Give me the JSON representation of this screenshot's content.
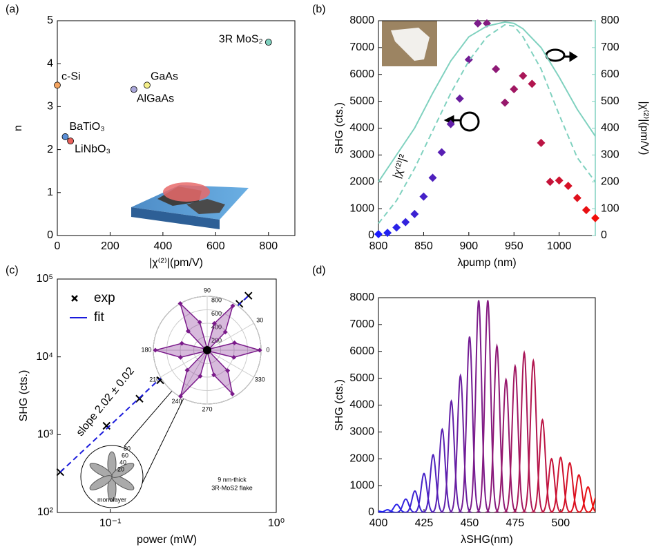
{
  "chart_data": [
    {
      "type": "scatter",
      "panel_label": "(a)",
      "xlabel": "|χ⁽²⁾|(pm/V)",
      "ylabel": "n",
      "xlim": [
        0,
        900
      ],
      "xticks": [
        0,
        200,
        400,
        600,
        800
      ],
      "ylim": [
        0,
        5
      ],
      "yticks": [
        0,
        1,
        2,
        3,
        4,
        5
      ],
      "points": {
        "labels": [
          "c-Si",
          "GaAs",
          "AlGaAs",
          "BaTiO₃",
          "LiNbO₃",
          "3R MoS₂"
        ],
        "x": [
          0,
          340,
          290,
          30,
          50,
          800
        ],
        "y": [
          3.5,
          3.5,
          3.4,
          2.3,
          2.2,
          4.5
        ],
        "colors": [
          "#f4a460",
          "#f5f08a",
          "#a9a6d9",
          "#5b8fd6",
          "#e8605a",
          "#7fd1bf"
        ]
      }
    },
    {
      "type": "scatter",
      "panel_label": "(b)",
      "xlabel": "λpump (nm)",
      "ylabel": "SHG (cts.)",
      "y2label": "|χ⁽²⁾|(pm/V)",
      "xlim": [
        800,
        1040
      ],
      "xticks": [
        800,
        850,
        900,
        950,
        1000
      ],
      "ylim": [
        0,
        8000
      ],
      "yticks": [
        0,
        1000,
        2000,
        3000,
        4000,
        5000,
        6000,
        7000,
        8000
      ],
      "y2lim": [
        0,
        800
      ],
      "y2ticks": [
        0,
        100,
        200,
        300,
        400,
        500,
        600,
        700,
        800
      ],
      "series": [
        {
          "x": [
            800,
            810,
            820,
            830,
            840,
            850,
            860,
            870,
            880,
            890,
            900,
            910,
            920,
            930,
            940,
            950,
            960,
            970,
            980,
            990,
            1000,
            1010,
            1020,
            1030,
            1040
          ],
          "values": [
            50,
            100,
            300,
            500,
            800,
            1450,
            2150,
            3100,
            4150,
            5100,
            6550,
            7900,
            7900,
            6200,
            4950,
            5450,
            5950,
            5650,
            3450,
            2000,
            2050,
            1850,
            1400,
            950,
            650
          ],
          "colors": [
            "#1a1aff",
            "#2020f0",
            "#2a22e8",
            "#3322dd",
            "#3c22d2",
            "#4521c8",
            "#4e20bd",
            "#581fb3",
            "#611ea8",
            "#6a1d9e",
            "#731c94",
            "#7c1b8a",
            "#851a80",
            "#8e1976",
            "#97186c",
            "#a01762",
            "#a91658",
            "#b2154e",
            "#bb1444",
            "#c4133a",
            "#cd1230",
            "#d61126",
            "#df101c",
            "#e80f12",
            "#f10e08"
          ]
        },
        {
          "x": [
            800,
            820,
            840,
            860,
            880,
            900,
            920,
            940,
            950,
            960,
            980,
            1000,
            1020,
            1040
          ],
          "values": [
            200,
            300,
            400,
            530,
            650,
            740,
            780,
            795,
            790,
            770,
            700,
            590,
            470,
            370
          ],
          "color": "#7fd1bf",
          "axis": "y2"
        },
        {
          "name": "|χ⁽²⁾|²",
          "x": [
            800,
            820,
            840,
            860,
            880,
            900,
            920,
            940,
            950,
            960,
            980,
            1000,
            1020,
            1040
          ],
          "values": [
            45,
            130,
            250,
            390,
            530,
            650,
            740,
            785,
            780,
            740,
            620,
            450,
            290,
            200
          ],
          "color": "#7fd1bf",
          "axis": "y2",
          "dash": true
        }
      ]
    },
    {
      "type": "scatter",
      "panel_label": "(c)",
      "xlabel": "power (mW)",
      "ylabel": "SHG (cts.)",
      "xscale": "log",
      "yscale": "log",
      "xlim": [
        0.048,
        1
      ],
      "xticks": [
        {
          "value": 0.1,
          "label": "10⁻¹"
        },
        {
          "value": 1,
          "label": "10⁰"
        }
      ],
      "ylim": [
        100,
        100000
      ],
      "yticks": [
        {
          "value": 100,
          "label": "10²"
        },
        {
          "value": 1000,
          "label": "10³"
        },
        {
          "value": 10000,
          "label": "10⁴"
        },
        {
          "value": 100000,
          "label": "10⁵"
        }
      ],
      "legend": "upper left",
      "annotation": "slope 2.02 ± 0.02",
      "series": [
        {
          "name": "exp",
          "x": [
            0.05,
            0.095,
            0.15,
            0.2,
            0.25,
            0.3,
            0.35,
            0.4,
            0.45,
            0.5,
            0.55,
            0.6,
            0.68
          ],
          "values": [
            330,
            1300,
            2900,
            5000,
            8000,
            11500,
            16000,
            20000,
            26000,
            32000,
            40000,
            48000,
            61000
          ],
          "color": "#000000"
        },
        {
          "name": "fit",
          "x": [
            0.05,
            0.68
          ],
          "values": [
            330,
            61000
          ],
          "color": "#1a1adc",
          "dash": true
        }
      ],
      "inset": {
        "type": "polar",
        "rlim": [
          0,
          800
        ],
        "rticks": [
          200,
          400,
          600,
          800
        ],
        "angle_ticks": [
          0,
          30,
          90,
          180,
          210,
          240,
          270,
          330
        ],
        "angles": [
          0,
          15,
          30,
          45,
          60,
          75,
          90,
          105,
          120,
          135,
          150,
          165,
          180,
          195,
          210,
          225,
          240,
          255,
          270,
          285,
          300,
          315,
          330,
          345
        ],
        "r": [
          780,
          420,
          30,
          380,
          760,
          410,
          20,
          430,
          800,
          400,
          40,
          390,
          770,
          410,
          30,
          420,
          790,
          400,
          20,
          380,
          750,
          430,
          30,
          410
        ],
        "color": "#7a1a8a",
        "label": [
          "9 nm-thick",
          "3R-MoS2 flake"
        ]
      },
      "inset2": {
        "label": "monolayer",
        "rticks": [
          20,
          40,
          60,
          80
        ]
      }
    },
    {
      "type": "line",
      "panel_label": "(d)",
      "xlabel": "λSHG(nm)",
      "ylabel": "SHG (cts.)",
      "xlim": [
        400,
        519
      ],
      "xticks": [
        400,
        425,
        450,
        475,
        500
      ],
      "ylim": [
        0,
        8000
      ],
      "yticks": [
        0,
        1000,
        2000,
        3000,
        4000,
        5000,
        6000,
        7000,
        8000
      ],
      "width": 1.6,
      "centers": [
        400,
        405,
        410,
        415,
        420,
        425,
        430,
        435,
        440,
        445,
        450,
        455,
        460,
        465,
        470,
        475,
        480,
        485,
        490,
        495,
        500,
        505,
        510,
        515,
        520
      ],
      "heights": [
        50,
        100,
        300,
        500,
        800,
        1450,
        2150,
        3100,
        4150,
        5100,
        6550,
        7900,
        7900,
        6200,
        4950,
        5450,
        5950,
        5650,
        3450,
        2000,
        2050,
        1850,
        1400,
        950,
        650
      ],
      "colors": [
        "#1a1aff",
        "#2020f0",
        "#2a22e8",
        "#3322dd",
        "#3c22d2",
        "#4521c8",
        "#4e20bd",
        "#581fb3",
        "#611ea8",
        "#6a1d9e",
        "#731c94",
        "#7c1b8a",
        "#851a80",
        "#8e1976",
        "#97186c",
        "#a01762",
        "#a91658",
        "#b2154e",
        "#bb1444",
        "#c4133a",
        "#cd1230",
        "#d61126",
        "#df101c",
        "#e80f12",
        "#f10e08"
      ]
    }
  ]
}
